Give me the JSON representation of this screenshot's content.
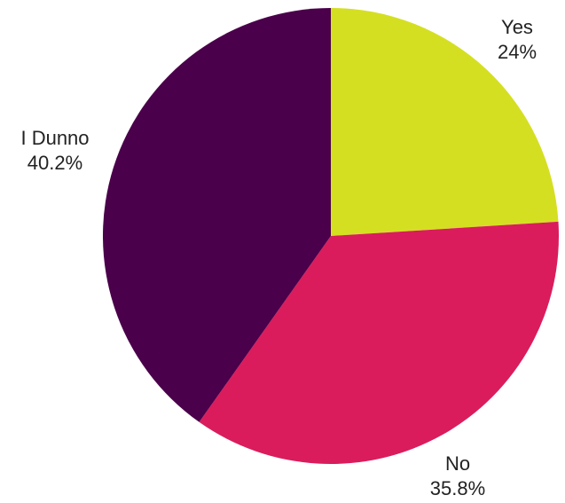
{
  "chart_data": {
    "type": "pie",
    "categories": [
      "Yes",
      "No",
      "I Dunno"
    ],
    "values": [
      24,
      35.8,
      40.2
    ],
    "value_labels": [
      "24%",
      "35.8%",
      "40.2%"
    ],
    "colors": [
      "#d5df22",
      "#da1c5c",
      "#4a004a"
    ],
    "start_angle_deg": 0,
    "direction": "clockwise"
  }
}
